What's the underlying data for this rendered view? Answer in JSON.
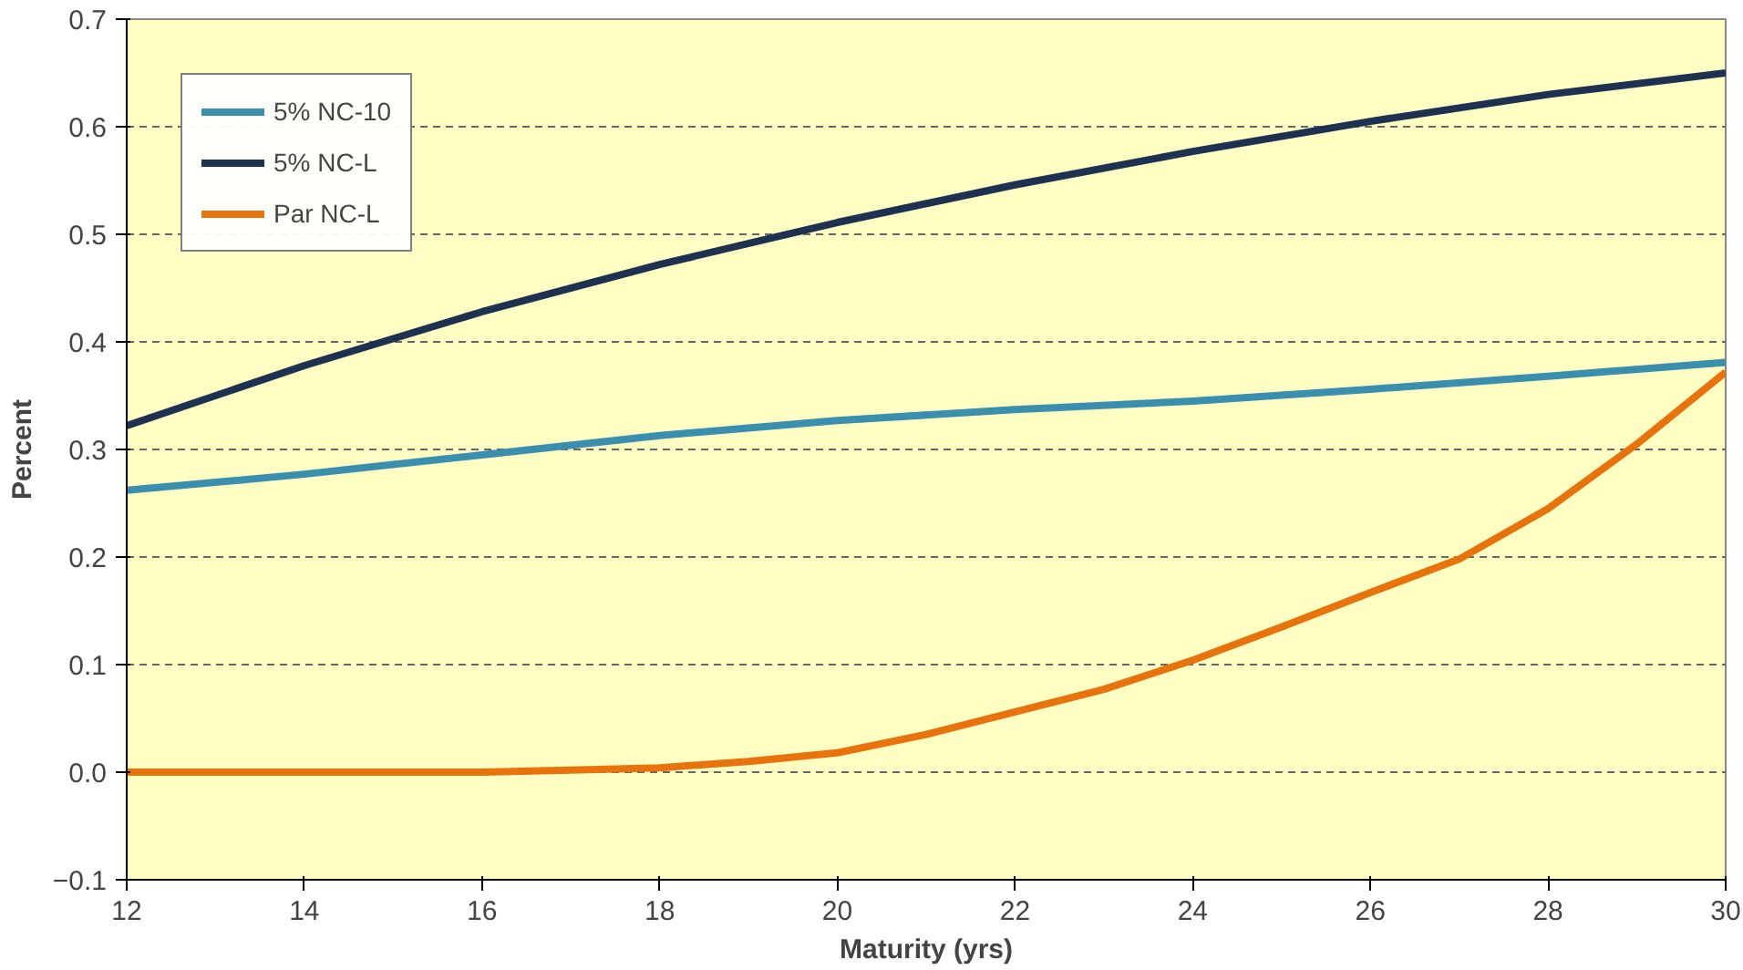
{
  "chart_data": {
    "type": "line",
    "xlabel": "Maturity (yrs)",
    "ylabel": "Percent",
    "xlim": [
      12,
      30
    ],
    "xticks": [
      12,
      14,
      16,
      18,
      20,
      22,
      24,
      26,
      28,
      30
    ],
    "ylim": [
      -0.1,
      0.7
    ],
    "yticks": [
      -0.1,
      {
        "value": 0,
        "label": "0.0"
      },
      0.1,
      0.2,
      0.3,
      0.4,
      0.5,
      0.6,
      0.7
    ],
    "grid": "y",
    "legend": "top left",
    "line_style": "solid",
    "marker": "none",
    "series": [
      {
        "name": "5% NC-10",
        "color": "#3a8fae",
        "x": [
          12,
          14,
          16,
          18,
          20,
          22,
          24,
          26,
          28,
          30
        ],
        "values": [
          0.262,
          0.277,
          0.295,
          0.313,
          0.327,
          0.337,
          0.345,
          0.356,
          0.368,
          0.381
        ]
      },
      {
        "name": "5% NC-L",
        "color": "#1f3150",
        "x": [
          12,
          14,
          16,
          18,
          20,
          22,
          24,
          26,
          28,
          30
        ],
        "values": [
          0.322,
          0.378,
          0.428,
          0.472,
          0.511,
          0.546,
          0.577,
          0.605,
          0.63,
          0.65
        ]
      },
      {
        "name": "Par NC-L",
        "color": "#e8720c",
        "x": [
          12,
          14,
          16,
          17,
          18,
          19,
          20,
          21,
          22,
          23,
          24,
          25,
          26,
          27,
          28,
          29,
          30
        ],
        "values": [
          0,
          0,
          0.0,
          0.002,
          0.004,
          0.01,
          0.018,
          0.035,
          0.056,
          0.077,
          0.104,
          0.135,
          0.167,
          0.198,
          0.245,
          0.305,
          0.372
        ]
      }
    ]
  }
}
